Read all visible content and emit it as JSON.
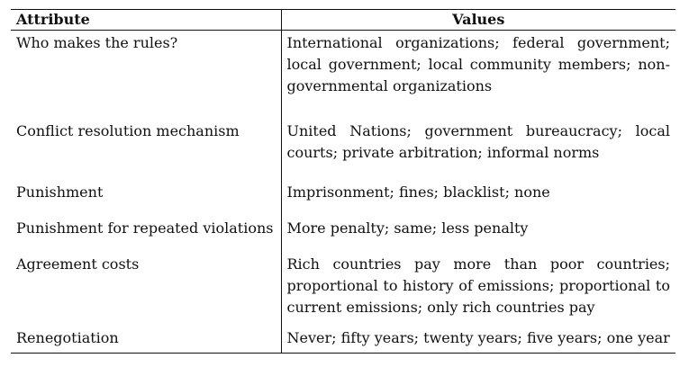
{
  "table": {
    "headers": {
      "attribute": "Attribute",
      "values": "Values"
    },
    "rows": [
      {
        "attribute": "Who makes the rules?",
        "values": "International organizations; federal government; local government; local community members; non-governmental organizations"
      },
      {
        "attribute": "Conflict resolution mechanism",
        "values": "United Nations; government bureaucracy; local courts; private arbitration; informal norms"
      },
      {
        "attribute": "Punishment",
        "values": "Imprisonment; fines; blacklist; none"
      },
      {
        "attribute": "Punishment for repeated violations",
        "values": "More penalty; same; less penalty"
      },
      {
        "attribute": "Agreement costs",
        "values": "Rich countries pay more than poor countries; proportional to history of emissions; proportional to current emissions; only rich countries pay"
      },
      {
        "attribute": "Renegotiation",
        "values": "Never; fifty years; twenty years; five years; one year"
      }
    ]
  }
}
